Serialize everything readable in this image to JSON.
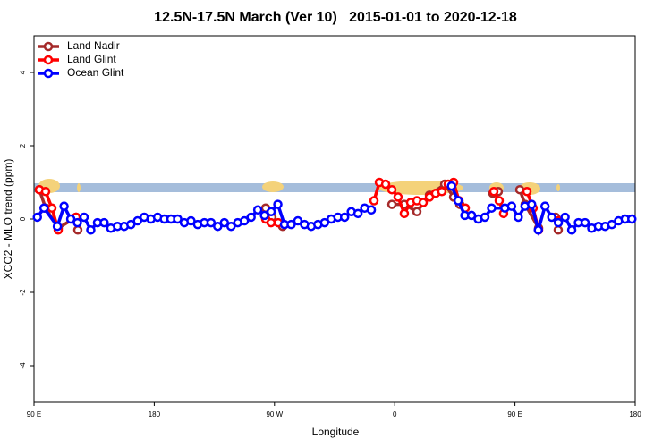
{
  "chart_data": {
    "type": "line",
    "title": "12.5N-17.5N March (Ver 10)   2015-01-01 to 2020-12-18",
    "xlabel": "Longitude",
    "ylabel": "XCO2 - MLO trend (ppm)",
    "xlim": [
      90,
      540
    ],
    "xticks": [
      {
        "value": 90,
        "label": "90 E"
      },
      180,
      {
        "value": 270,
        "label": "90 W"
      },
      {
        "value": 360,
        "label": "0"
      },
      {
        "value": 450,
        "label": "90 E"
      },
      {
        "value": 540,
        "label": "180"
      }
    ],
    "ylim": [
      -5,
      5
    ],
    "yticks": [
      -4,
      -2,
      0,
      2,
      4
    ],
    "legend": "top-left",
    "series": [
      {
        "name": "Land Nadir",
        "color": "#a52a2a",
        "x": [
          94,
          98.7,
          108.1,
          121.5,
          122.8,
          null,
          263.4,
          268.1,
          276.1,
          null,
          357.9,
          367.2,
          376.6,
          386,
          397.4,
          404.1,
          408.7,
          null,
          433.5,
          437.5,
          null,
          453.6,
          457.6,
          467.7,
          null,
          480.4,
          482.4
        ],
        "values": [
          0.8,
          0.3,
          -0.25,
          0.05,
          -0.3,
          null,
          0.3,
          0.05,
          -0.2,
          null,
          0.4,
          0.4,
          0.2,
          0.65,
          0.95,
          0.6,
          0.4,
          null,
          0.7,
          0.75,
          null,
          0.8,
          0.4,
          -0.25,
          null,
          0.05,
          -0.3
        ]
      },
      {
        "name": "Land Glint",
        "color": "#ff0000",
        "x": [
          94,
          98.7,
          103.4,
          108.1,
          null,
          121.5,
          null,
          263.4,
          267.4,
          272.8,
          null,
          344.5,
          348.5,
          353.2,
          357.9,
          362.5,
          367.2,
          371.9,
          376.6,
          381.3,
          386,
          390.6,
          395.3,
          400,
          404.1,
          408.1,
          412.8,
          null,
          434.2,
          438.2,
          441.5,
          null,
          459,
          463.6,
          467.7,
          null,
          482.4
        ],
        "values": [
          0.8,
          0.75,
          0.3,
          -0.3,
          null,
          0.05,
          null,
          0.0,
          -0.1,
          -0.1,
          null,
          0.5,
          1.0,
          0.95,
          0.8,
          0.6,
          0.15,
          0.45,
          0.5,
          0.45,
          0.6,
          0.7,
          0.75,
          0.95,
          1.0,
          0.5,
          0.3,
          null,
          0.75,
          0.5,
          0.15,
          null,
          0.75,
          0.3,
          -0.3,
          null,
          -0.05
        ]
      },
      {
        "name": "Ocean Glint",
        "color": "#0000ff",
        "x": [
          92.5,
          97.5,
          107.5,
          112.5,
          117.5,
          122.5,
          127.5,
          132.5,
          137.5,
          142.5,
          147.5,
          152.5,
          157.5,
          162.5,
          167.5,
          172.5,
          177.5,
          182.5,
          187.5,
          192.5,
          197.5,
          202.5,
          207.5,
          212.5,
          217.5,
          222.5,
          227.5,
          232.5,
          237.5,
          242.5,
          247.5,
          252.5,
          257.5,
          262.5,
          267.5,
          272.5,
          277.5,
          282.5,
          287.5,
          292.5,
          297.5,
          302.5,
          307.5,
          312.5,
          317.5,
          322.5,
          327.5,
          332.5,
          337.5,
          342.5,
          null,
          402.5,
          407.5,
          412.5,
          417.5,
          422.5,
          427.5,
          432.5,
          442.5,
          447.5,
          452.5,
          457.5,
          462.5,
          467.5,
          472.5,
          477.5,
          482.5,
          487.5,
          492.5,
          497.5,
          502.5,
          507.5,
          512.5,
          517.5,
          522.5,
          527.5,
          532.5,
          537.5
        ],
        "values": [
          0.05,
          0.3,
          -0.2,
          0.35,
          0.0,
          -0.1,
          0.05,
          -0.3,
          -0.1,
          -0.1,
          -0.25,
          -0.2,
          -0.2,
          -0.15,
          -0.05,
          0.05,
          0.0,
          0.05,
          0.0,
          0.0,
          0.0,
          -0.1,
          -0.05,
          -0.15,
          -0.1,
          -0.1,
          -0.2,
          -0.1,
          -0.2,
          -0.1,
          -0.05,
          0.05,
          0.25,
          0.1,
          0.2,
          0.4,
          -0.15,
          -0.15,
          -0.05,
          -0.15,
          -0.2,
          -0.15,
          -0.1,
          0.0,
          0.05,
          0.05,
          0.2,
          0.15,
          0.3,
          0.25,
          null,
          0.9,
          0.5,
          0.1,
          0.1,
          0.0,
          0.05,
          0.3,
          0.3,
          0.35,
          0.05,
          0.35,
          0.4,
          -0.3,
          0.35,
          0.05,
          -0.1,
          0.05,
          -0.3,
          -0.1,
          -0.1,
          -0.25,
          -0.2,
          -0.2,
          -0.15,
          -0.05,
          0.0,
          0.0
        ]
      }
    ]
  }
}
